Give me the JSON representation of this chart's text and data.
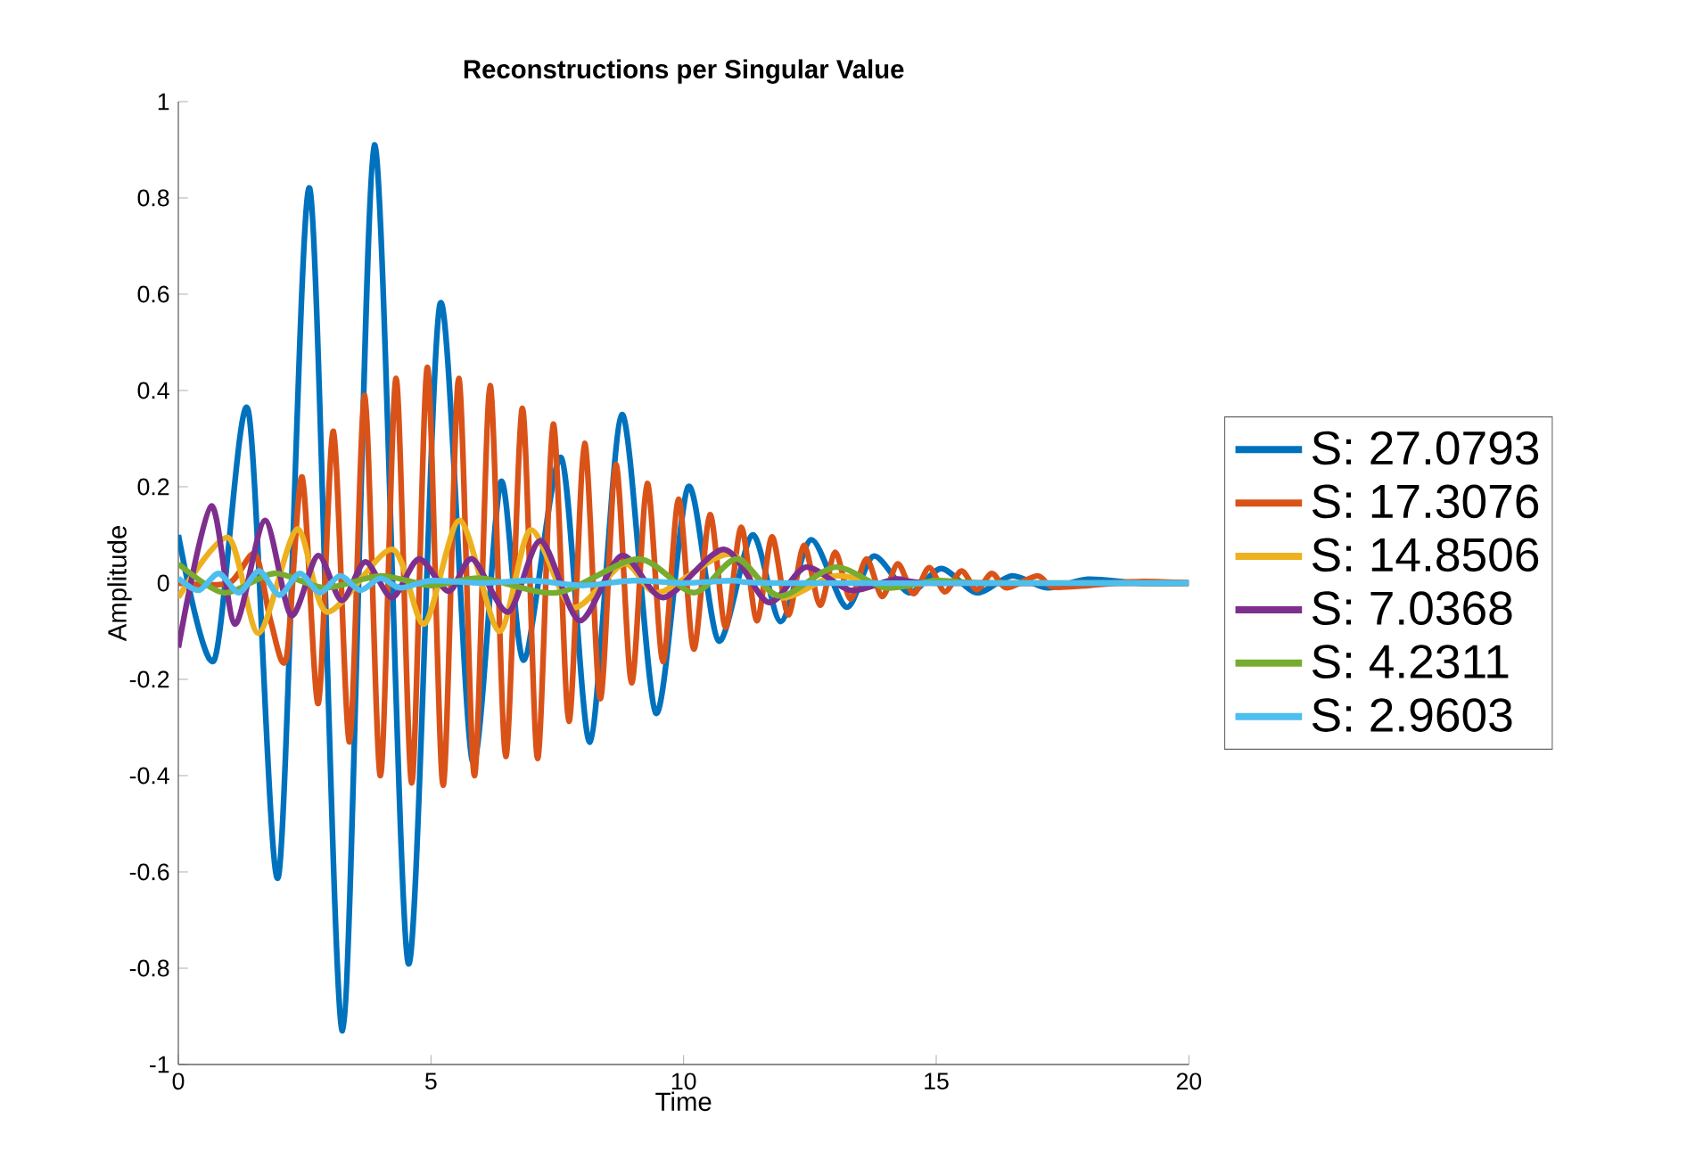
{
  "chart_data": {
    "type": "line",
    "title": "Reconstructions per Singular Value",
    "xlabel": "Time",
    "ylabel": "Amplitude",
    "xlim": [
      0,
      20
    ],
    "ylim": [
      -1,
      1
    ],
    "xticks": [
      0,
      5,
      10,
      15,
      20
    ],
    "yticks": [
      -1,
      -0.8,
      -0.6,
      -0.4,
      -0.2,
      0,
      0.2,
      0.4,
      0.6,
      0.8,
      1
    ],
    "legend": "right",
    "grid": false,
    "marker": "none",
    "line_style": "solid",
    "series": [
      {
        "name": "S: 27.0793",
        "color": "#0072bd",
        "x": [
          0,
          0.71,
          1.38,
          1.98,
          2.6,
          3.25,
          3.88,
          4.55,
          5.18,
          5.82,
          6.38,
          6.84,
          7.58,
          8.15,
          8.78,
          9.45,
          10.09,
          10.69,
          11.36,
          11.92,
          12.52,
          13.22,
          13.76,
          14.46,
          15.1,
          15.8,
          16.5,
          17.2,
          18.0,
          19.0,
          20.0
        ],
        "values": [
          0.1,
          -0.16,
          0.36,
          -0.61,
          0.82,
          -0.93,
          0.91,
          -0.79,
          0.58,
          -0.37,
          0.21,
          -0.16,
          0.26,
          -0.33,
          0.35,
          -0.27,
          0.2,
          -0.12,
          0.1,
          -0.08,
          0.09,
          -0.05,
          0.056,
          -0.02,
          0.03,
          -0.02,
          0.015,
          -0.01,
          0.008,
          0,
          0
        ]
      },
      {
        "name": "S: 17.3076",
        "color": "#d95319",
        "x": [
          0,
          1.0,
          1.52,
          1.83,
          2.14,
          2.45,
          2.77,
          3.07,
          3.39,
          3.69,
          4.0,
          4.31,
          4.62,
          4.93,
          5.24,
          5.55,
          5.86,
          6.17,
          6.48,
          6.81,
          7.11,
          7.42,
          7.73,
          8.04,
          8.35,
          8.66,
          8.97,
          9.28,
          9.59,
          9.9,
          10.2,
          10.52,
          10.83,
          11.14,
          11.45,
          11.75,
          12.07,
          12.38,
          12.7,
          13.0,
          13.3,
          13.62,
          13.93,
          14.24,
          14.55,
          14.86,
          15.17,
          15.5,
          15.8,
          16.1,
          16.4,
          17.0,
          17.3,
          18.0,
          19.0,
          20.0
        ],
        "values": [
          0,
          0,
          0.06,
          -0.08,
          -0.155,
          0.22,
          -0.25,
          0.315,
          -0.33,
          0.39,
          -0.4,
          0.425,
          -0.415,
          0.448,
          -0.42,
          0.425,
          -0.4,
          0.41,
          -0.36,
          0.363,
          -0.364,
          0.33,
          -0.287,
          0.29,
          -0.24,
          0.246,
          -0.207,
          0.207,
          -0.163,
          0.174,
          -0.137,
          0.142,
          -0.092,
          0.116,
          -0.078,
          0.096,
          -0.066,
          0.078,
          -0.046,
          0.064,
          -0.033,
          0.05,
          -0.028,
          0.04,
          -0.022,
          0.032,
          -0.018,
          0.025,
          -0.014,
          0.02,
          -0.01,
          0.015,
          -0.008,
          -0.005,
          0.003,
          0
        ]
      },
      {
        "name": "S: 14.8506",
        "color": "#edb120",
        "x": [
          0,
          0.99,
          1.59,
          2.35,
          2.94,
          4.23,
          4.87,
          5.57,
          6.35,
          6.97,
          7.8,
          8.82,
          9.5,
          10.9,
          11.9,
          13.0,
          14.0,
          15.0,
          20.0
        ],
        "values": [
          -0.03,
          0.094,
          -0.104,
          0.112,
          -0.06,
          0.07,
          -0.085,
          0.13,
          -0.1,
          0.11,
          -0.05,
          0.04,
          -0.02,
          0.06,
          -0.03,
          0.015,
          -0.005,
          0,
          0
        ]
      },
      {
        "name": "S: 7.0368",
        "color": "#7e2f8e",
        "x": [
          0,
          0.65,
          1.12,
          1.71,
          2.23,
          2.76,
          3.23,
          3.7,
          4.23,
          4.76,
          5.35,
          5.82,
          6.53,
          7.17,
          7.94,
          8.77,
          9.6,
          10.8,
          11.68,
          12.42,
          13.3,
          14.2,
          15.0,
          20.0
        ],
        "values": [
          -0.134,
          0.16,
          -0.085,
          0.13,
          -0.067,
          0.057,
          -0.036,
          0.044,
          -0.03,
          0.05,
          -0.017,
          0.05,
          -0.06,
          0.088,
          -0.078,
          0.057,
          -0.03,
          0.07,
          -0.04,
          0.033,
          -0.015,
          0.008,
          0,
          0
        ]
      },
      {
        "name": "S: 4.2311",
        "color": "#77ac30",
        "x": [
          0,
          0.9,
          1.9,
          2.9,
          4.0,
          5.0,
          6.0,
          7.5,
          9.1,
          10.2,
          11.05,
          11.9,
          13.0,
          14.0,
          15.0,
          16.0,
          20.0
        ],
        "values": [
          0.04,
          -0.02,
          0.02,
          -0.01,
          0.015,
          -0.005,
          0.01,
          -0.02,
          0.05,
          -0.02,
          0.05,
          -0.027,
          0.033,
          -0.01,
          0.005,
          0,
          0
        ]
      },
      {
        "name": "S: 2.9603",
        "color": "#4dbeee",
        "x": [
          0,
          0.4,
          0.8,
          1.2,
          1.6,
          2.0,
          2.4,
          2.8,
          3.2,
          3.6,
          4.0,
          4.4,
          5.0,
          6.0,
          7.0,
          8.0,
          9.0,
          10.0,
          11.0,
          12.0,
          20.0
        ],
        "values": [
          0.01,
          -0.015,
          0.02,
          -0.02,
          0.025,
          -0.025,
          0.02,
          -0.02,
          0.015,
          -0.015,
          0.01,
          -0.01,
          0.005,
          0,
          0.005,
          -0.005,
          0.005,
          0,
          0.005,
          0,
          0
        ]
      }
    ]
  }
}
